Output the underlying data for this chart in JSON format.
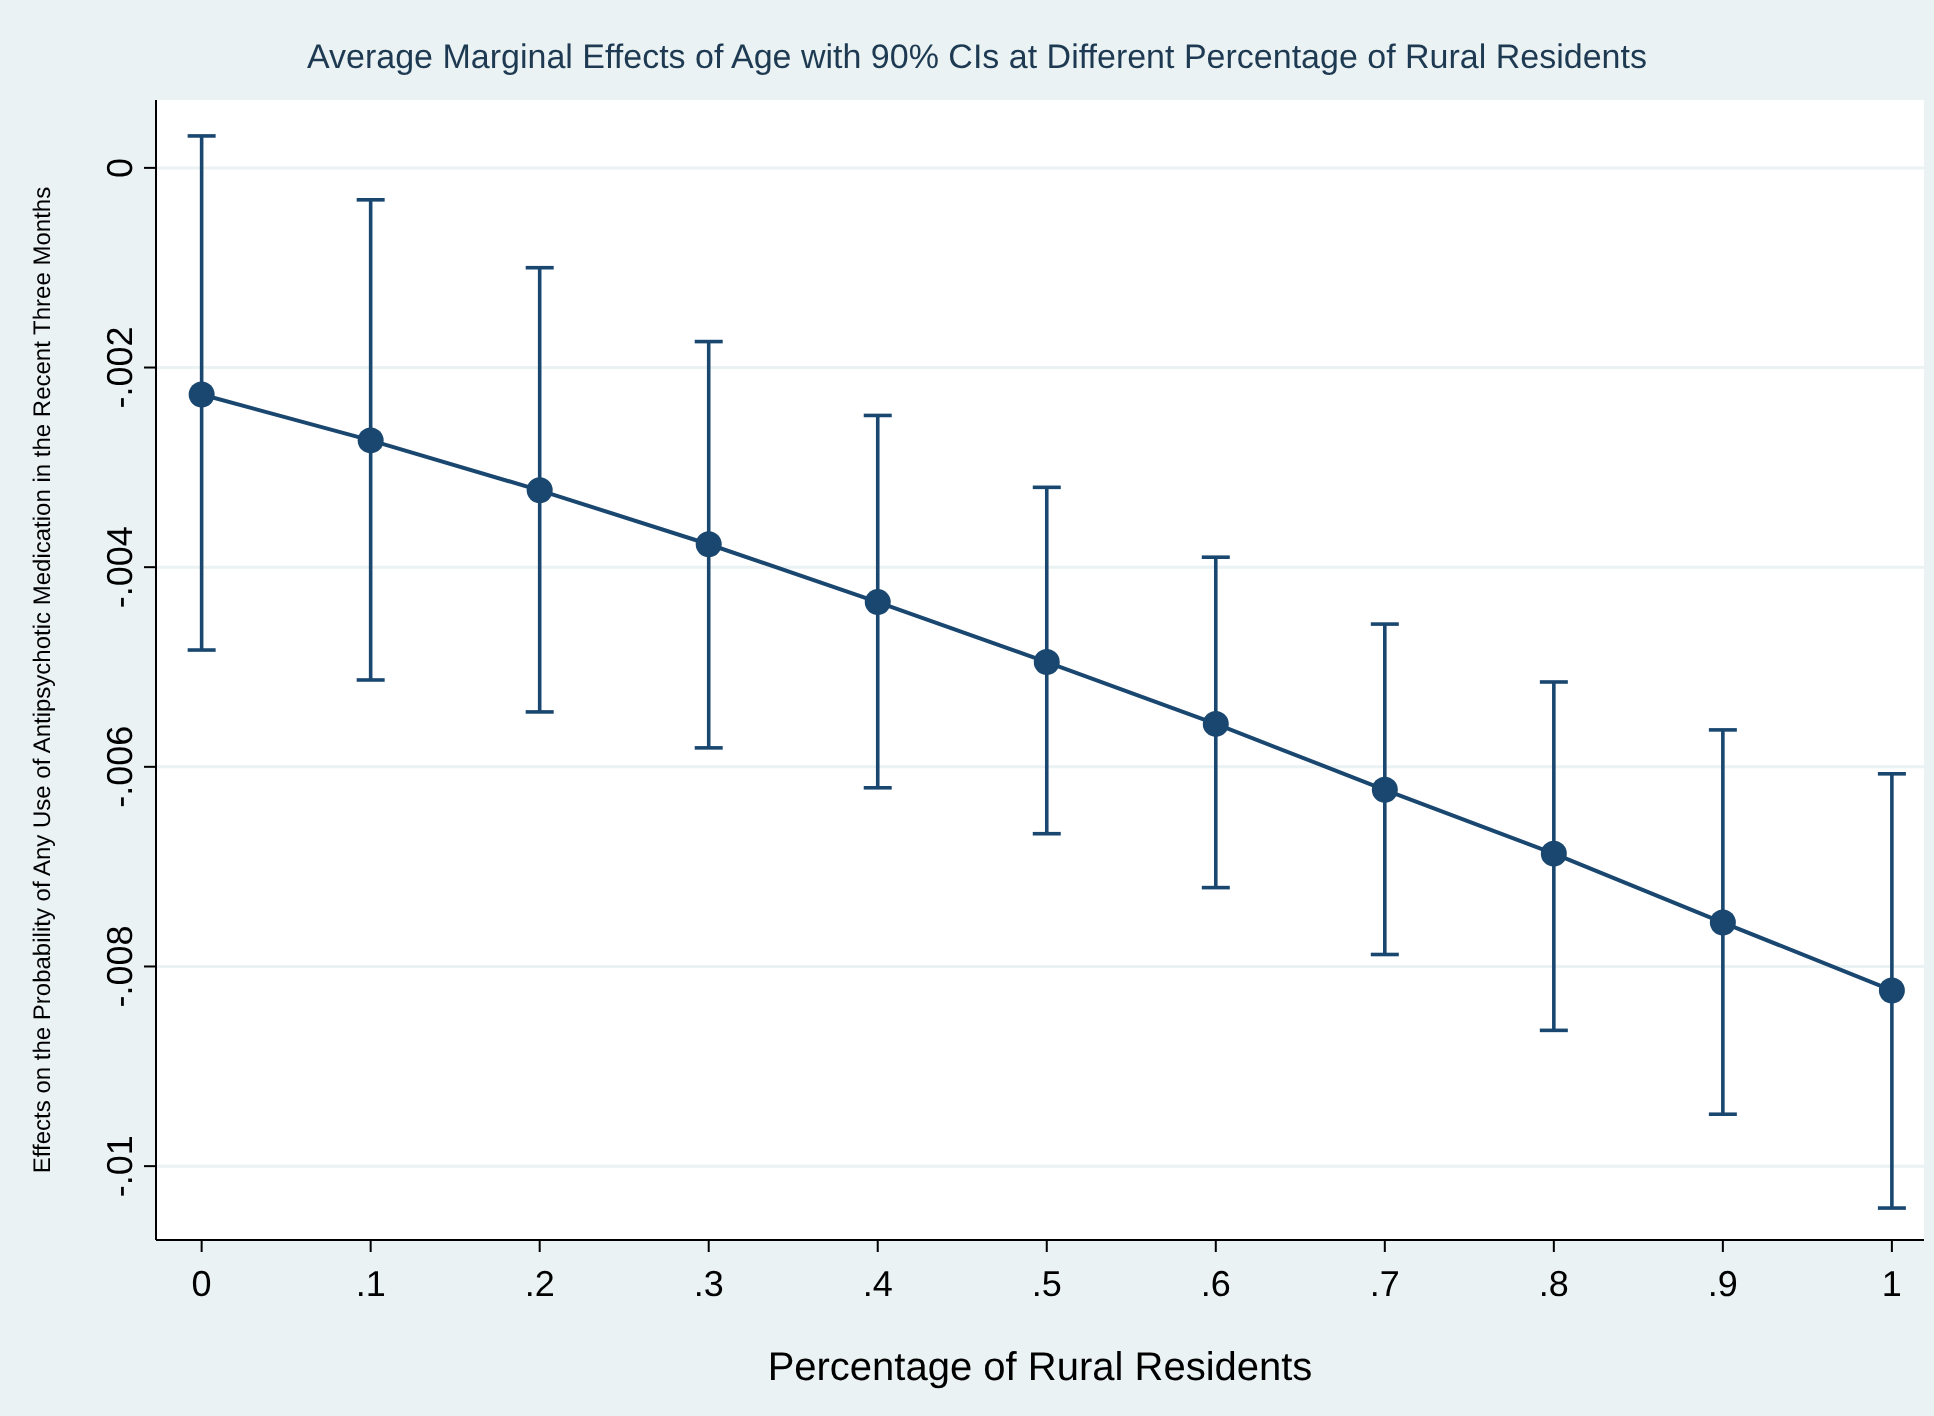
{
  "chart_data": {
    "type": "line",
    "title": "Average Marginal Effects of Age with 90% CIs at Different Percentage of Rural Residents",
    "xlabel": "Percentage of Rural Residents",
    "ylabel": "Effects on the Probability of Any Use of Antipsychotic Medication in the Recent Three Months",
    "x": [
      0,
      0.1,
      0.2,
      0.3,
      0.4,
      0.5,
      0.6,
      0.7,
      0.8,
      0.9,
      1
    ],
    "series": [
      {
        "color": "#1a476f",
        "values": [
          -0.00227,
          -0.00273,
          -0.00323,
          -0.00377,
          -0.00435,
          -0.00495,
          -0.00557,
          -0.00623,
          -0.00687,
          -0.00756,
          -0.00824
        ],
        "errors": [
          [
            -0.00483,
            0.00032
          ],
          [
            -0.00513,
            -0.00032
          ],
          [
            -0.00545,
            -0.001
          ],
          [
            -0.00581,
            -0.00174
          ],
          [
            -0.00621,
            -0.00248
          ],
          [
            -0.00667,
            -0.0032
          ],
          [
            -0.00721,
            -0.0039
          ],
          [
            -0.00788,
            -0.00457
          ],
          [
            -0.00864,
            -0.00515
          ],
          [
            -0.00948,
            -0.00563
          ],
          [
            -0.01042,
            -0.00607
          ]
        ]
      }
    ],
    "xlim": [
      -0.027,
      1.019
    ],
    "ylim": [
      -0.01074,
      0.00068
    ],
    "xticks": [
      0,
      {
        "value": 0.1,
        "label": ".1"
      },
      {
        "value": 0.2,
        "label": ".2"
      },
      {
        "value": 0.3,
        "label": ".3"
      },
      {
        "value": 0.4,
        "label": ".4"
      },
      {
        "value": 0.5,
        "label": ".5"
      },
      {
        "value": 0.6,
        "label": ".6"
      },
      {
        "value": 0.7,
        "label": ".7"
      },
      {
        "value": 0.8,
        "label": ".8"
      },
      {
        "value": 0.9,
        "label": ".9"
      },
      1
    ],
    "yticks": [
      {
        "value": -0.01,
        "label": "-.01"
      },
      {
        "value": -0.008,
        "label": "-.008"
      },
      {
        "value": -0.006,
        "label": "-.006"
      },
      {
        "value": -0.004,
        "label": "-.004"
      },
      {
        "value": -0.002,
        "label": "-.002"
      },
      0
    ],
    "grid": "y",
    "marker": "circle",
    "line_style": "solid"
  }
}
